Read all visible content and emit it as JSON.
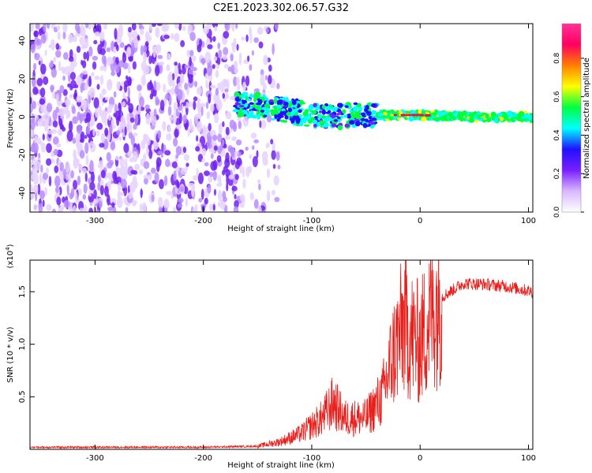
{
  "title": "C2E1.2023.302.06.57.G32",
  "chart_data": [
    {
      "type": "heatmap",
      "xlabel": "Height of straight line (km)",
      "ylabel": "Frequency (Hz)",
      "xlim": [
        -360,
        104
      ],
      "ylim": [
        -50,
        49
      ],
      "xticks": [
        -300,
        -200,
        -100,
        0,
        100
      ],
      "yticks": [
        -40,
        -20,
        0,
        20,
        40
      ],
      "grid": false,
      "colorbar": {
        "label": "Normalized spectral amplitude",
        "range": [
          0,
          0.98
        ],
        "ticks": [
          0.0,
          0.2,
          0.4,
          0.6,
          0.8
        ],
        "colormap": [
          "#ffffff",
          "#d8b8ff",
          "#7a1fff",
          "#2010ff",
          "#00ffff",
          "#00ff40",
          "#ffff00",
          "#ff8000",
          "#ff0060",
          "#ff3399"
        ]
      },
      "band_center_hz": [
        {
          "x": -170,
          "y": 7
        },
        {
          "x": -150,
          "y": 6
        },
        {
          "x": -120,
          "y": 3
        },
        {
          "x": -100,
          "y": 1
        },
        {
          "x": -80,
          "y": 0
        },
        {
          "x": -60,
          "y": 1
        },
        {
          "x": -40,
          "y": 1
        },
        {
          "x": -20,
          "y": 1
        },
        {
          "x": 0,
          "y": 1
        },
        {
          "x": 50,
          "y": 0
        },
        {
          "x": 104,
          "y": 0
        }
      ]
    },
    {
      "type": "line",
      "xlabel": "Height of straight line (km)",
      "ylabel": "SNR (10 * v/v)",
      "y_multiplier": "(x10^4)",
      "xlim": [
        -360,
        104
      ],
      "ylim": [
        0,
        1.8
      ],
      "xticks": [
        -300,
        -200,
        -100,
        0,
        100
      ],
      "yticks": [
        0.5,
        1.0,
        1.5
      ],
      "grid": false,
      "series": [
        {
          "color": "#e8201c",
          "points": [
            {
              "x": -360,
              "y": 0.02
            },
            {
              "x": -300,
              "y": 0.02
            },
            {
              "x": -200,
              "y": 0.02
            },
            {
              "x": -150,
              "y": 0.03
            },
            {
              "x": -130,
              "y": 0.07
            },
            {
              "x": -110,
              "y": 0.15
            },
            {
              "x": -90,
              "y": 0.3
            },
            {
              "x": -80,
              "y": 0.45
            },
            {
              "x": -70,
              "y": 0.3
            },
            {
              "x": -50,
              "y": 0.3
            },
            {
              "x": -35,
              "y": 0.5
            },
            {
              "x": -25,
              "y": 0.9
            },
            {
              "x": -15,
              "y": 1.2
            },
            {
              "x": -10,
              "y": 1.1
            },
            {
              "x": 0,
              "y": 1.0
            },
            {
              "x": 10,
              "y": 1.3
            },
            {
              "x": 20,
              "y": 1.45
            },
            {
              "x": 40,
              "y": 1.58
            },
            {
              "x": 60,
              "y": 1.57
            },
            {
              "x": 80,
              "y": 1.55
            },
            {
              "x": 104,
              "y": 1.5
            }
          ]
        }
      ]
    }
  ]
}
